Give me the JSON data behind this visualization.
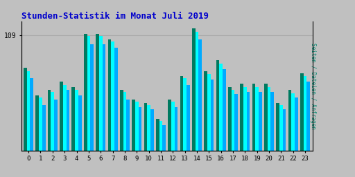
{
  "title": "Stunden-Statistik im Monat Juli 2019",
  "title_color": "#0000cc",
  "ylabel": "Seiten / Dateien / Anfragen",
  "ylabel_color": "#008870",
  "background_color": "#c0c0c0",
  "plot_bg_color": "#c0c0c0",
  "bar_width": 0.27,
  "hours": [
    0,
    1,
    2,
    3,
    4,
    5,
    6,
    7,
    8,
    9,
    10,
    11,
    12,
    13,
    14,
    15,
    16,
    17,
    18,
    19,
    20,
    21,
    22,
    23
  ],
  "xlabel_ticks": [
    "0",
    "1",
    "2",
    "3",
    "4",
    "5",
    "6",
    "7",
    "8",
    "9",
    "10",
    "11",
    "12",
    "13",
    "14",
    "15",
    "16",
    "17",
    "18",
    "19",
    "20",
    "21",
    "22",
    "23"
  ],
  "seiten": [
    75,
    50,
    55,
    62,
    57,
    108,
    108,
    103,
    55,
    46,
    43,
    28,
    46,
    68,
    112,
    72,
    82,
    57,
    60,
    60,
    60,
    43,
    54,
    70
  ],
  "dateien": [
    68,
    43,
    48,
    57,
    52,
    100,
    100,
    97,
    48,
    41,
    39,
    24,
    41,
    62,
    105,
    67,
    77,
    53,
    55,
    55,
    55,
    39,
    50,
    65
  ],
  "anfragen": [
    78,
    52,
    57,
    65,
    60,
    110,
    110,
    105,
    57,
    48,
    45,
    30,
    48,
    70,
    115,
    75,
    85,
    60,
    63,
    63,
    63,
    45,
    57,
    73
  ],
  "color_seiten": "#00ffff",
  "color_dateien": "#00aaff",
  "color_anfragen": "#007a60",
  "grid_color": "#aaaaaa",
  "ymax": 122,
  "ytick_val": 109,
  "ytick_label": "109"
}
